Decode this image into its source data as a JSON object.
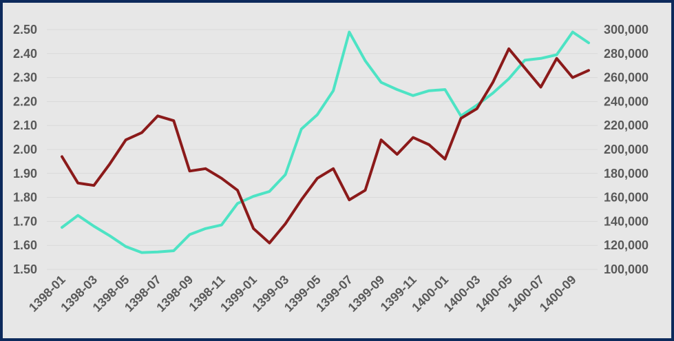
{
  "chart_data": {
    "type": "line",
    "title": "",
    "xlabel": "",
    "ylabel": "",
    "y2label": "",
    "grid": true,
    "legend": "none",
    "x": [
      "1398-01",
      "1398-02",
      "1398-03",
      "1398-04",
      "1398-05",
      "1398-06",
      "1398-07",
      "1398-08",
      "1398-09",
      "1398-10",
      "1398-11",
      "1398-12",
      "1399-01",
      "1399-02",
      "1399-03",
      "1399-04",
      "1399-05",
      "1399-06",
      "1399-07",
      "1399-08",
      "1399-09",
      "1399-10",
      "1399-11",
      "1399-12",
      "1400-01",
      "1400-02",
      "1400-03",
      "1400-04",
      "1400-05",
      "1400-06",
      "1400-07",
      "1400-08",
      "1400-09",
      "1400-10"
    ],
    "x_tick_labels": [
      "1398-01",
      "1398-03",
      "1398-05",
      "1398-07",
      "1398-09",
      "1398-11",
      "1399-01",
      "1399-03",
      "1399-05",
      "1399-07",
      "1399-09",
      "1399-11",
      "1400-01",
      "1400-03",
      "1400-05",
      "1400-07",
      "1400-09"
    ],
    "ylim": [
      1.5,
      2.5
    ],
    "y_ticks": [
      1.5,
      1.6,
      1.7,
      1.8,
      1.9,
      2.0,
      2.1,
      2.2,
      2.3,
      2.4,
      2.5
    ],
    "y_tick_labels": [
      "1.50",
      "1.60",
      "1.70",
      "1.80",
      "1.90",
      "2.00",
      "2.10",
      "2.20",
      "2.30",
      "2.40",
      "2.50"
    ],
    "y2lim": [
      100000,
      300000
    ],
    "y2_ticks": [
      100000,
      120000,
      140000,
      160000,
      180000,
      200000,
      220000,
      240000,
      260000,
      280000,
      300000
    ],
    "y2_tick_labels": [
      "100,000",
      "120,000",
      "140,000",
      "160,000",
      "180,000",
      "200,000",
      "220,000",
      "240,000",
      "260,000",
      "280,000",
      "300,000"
    ],
    "series": [
      {
        "axis": "left",
        "color": "#8b1a1a",
        "values": [
          1.97,
          1.86,
          1.85,
          1.94,
          2.04,
          2.07,
          2.14,
          2.12,
          1.91,
          1.92,
          1.88,
          1.83,
          1.67,
          1.61,
          1.69,
          1.79,
          1.88,
          1.92,
          1.79,
          1.83,
          2.04,
          1.98,
          2.05,
          2.02,
          1.96,
          2.13,
          2.17,
          2.28,
          2.42,
          2.34,
          2.26,
          2.38,
          2.3,
          2.33
        ]
      },
      {
        "axis": "right",
        "color": "#4de3c4",
        "values": [
          135000,
          145000,
          136000,
          128000,
          119000,
          114000,
          114500,
          115500,
          129000,
          134000,
          137000,
          155000,
          161000,
          165000,
          179000,
          217000,
          229000,
          249000,
          298000,
          274000,
          256000,
          250000,
          245000,
          249000,
          250000,
          228000,
          237000,
          247000,
          259000,
          274500,
          276000,
          279000,
          298000,
          289000
        ]
      }
    ]
  }
}
